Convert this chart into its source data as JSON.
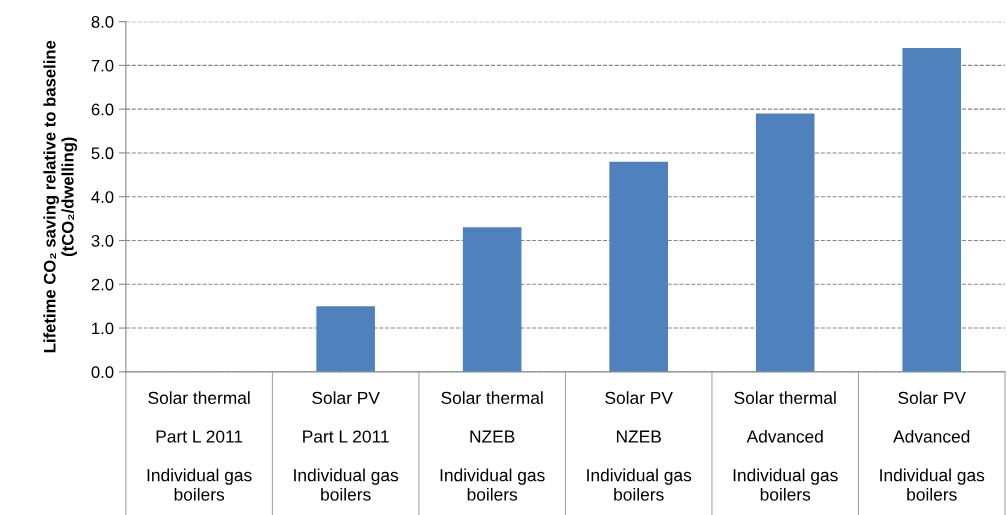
{
  "chart_data": {
    "type": "bar",
    "ylabel": "Lifetime CO₂ saving relative to baseline\n(tCO₂/dwelling)",
    "categories": [
      "Solar thermal\n\nPart L 2011\n\nIndividual gas\nboilers",
      "Solar PV\n\nPart L 2011\n\nIndividual gas\nboilers",
      "Solar thermal\n\nNZEB\n\nIndividual gas\nboilers",
      "Solar PV\n\nNZEB\n\nIndividual gas\nboilers",
      "Solar thermal\n\nAdvanced\n\nIndividual gas\nboilers",
      "Solar PV\n\nAdvanced\n\nIndividual gas\nboilers"
    ],
    "values": [
      0,
      1.5,
      3.3,
      4.8,
      5.9,
      7.4
    ],
    "color": "#4f81bd",
    "ylim": [
      0,
      8
    ],
    "yticks": [
      {
        "value": 0,
        "label": "0.0"
      },
      {
        "value": 1,
        "label": "1.0"
      },
      {
        "value": 2,
        "label": "2.0"
      },
      {
        "value": 3,
        "label": "3.0"
      },
      {
        "value": 4,
        "label": "4.0"
      },
      {
        "value": 5,
        "label": "5.0"
      },
      {
        "value": 6,
        "label": "6.0"
      },
      {
        "value": 7,
        "label": "7.0"
      },
      {
        "value": 8,
        "label": "8.0"
      }
    ],
    "grid": "y"
  }
}
